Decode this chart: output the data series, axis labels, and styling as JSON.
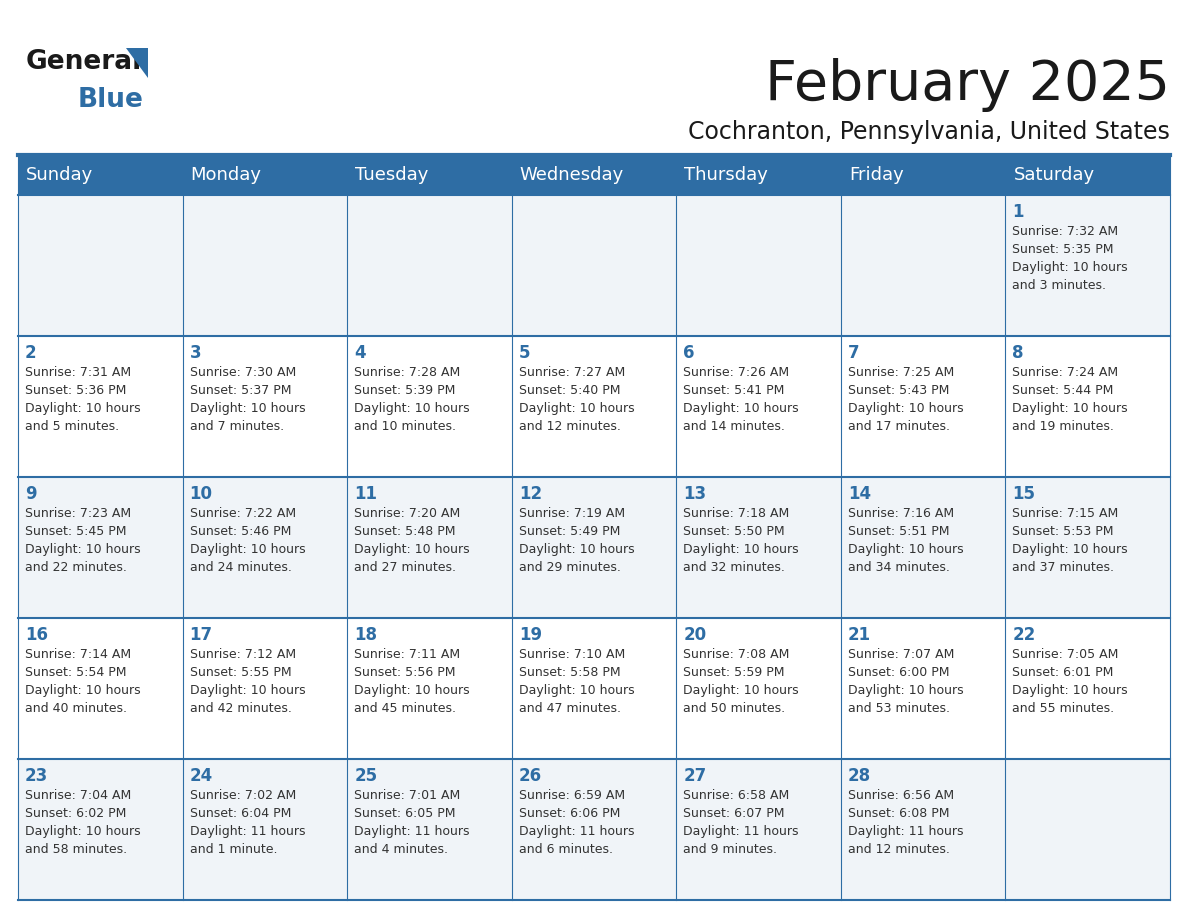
{
  "title": "February 2025",
  "subtitle": "Cochranton, Pennsylvania, United States",
  "header_bg": "#2e6da4",
  "header_text_color": "#ffffff",
  "cell_bg_odd": "#f0f4f8",
  "cell_bg_even": "#ffffff",
  "day_headers": [
    "Sunday",
    "Monday",
    "Tuesday",
    "Wednesday",
    "Thursday",
    "Friday",
    "Saturday"
  ],
  "title_color": "#1a1a1a",
  "subtitle_color": "#1a1a1a",
  "day_num_color": "#2e6da4",
  "info_color": "#333333",
  "line_color": "#2e6da4",
  "logo_general_color": "#1a1a1a",
  "logo_blue_color": "#2e6da4",
  "logo_triangle_color": "#2e6da4",
  "calendar": [
    [
      {
        "day": "",
        "info": ""
      },
      {
        "day": "",
        "info": ""
      },
      {
        "day": "",
        "info": ""
      },
      {
        "day": "",
        "info": ""
      },
      {
        "day": "",
        "info": ""
      },
      {
        "day": "",
        "info": ""
      },
      {
        "day": "1",
        "info": "Sunrise: 7:32 AM\nSunset: 5:35 PM\nDaylight: 10 hours\nand 3 minutes."
      }
    ],
    [
      {
        "day": "2",
        "info": "Sunrise: 7:31 AM\nSunset: 5:36 PM\nDaylight: 10 hours\nand 5 minutes."
      },
      {
        "day": "3",
        "info": "Sunrise: 7:30 AM\nSunset: 5:37 PM\nDaylight: 10 hours\nand 7 minutes."
      },
      {
        "day": "4",
        "info": "Sunrise: 7:28 AM\nSunset: 5:39 PM\nDaylight: 10 hours\nand 10 minutes."
      },
      {
        "day": "5",
        "info": "Sunrise: 7:27 AM\nSunset: 5:40 PM\nDaylight: 10 hours\nand 12 minutes."
      },
      {
        "day": "6",
        "info": "Sunrise: 7:26 AM\nSunset: 5:41 PM\nDaylight: 10 hours\nand 14 minutes."
      },
      {
        "day": "7",
        "info": "Sunrise: 7:25 AM\nSunset: 5:43 PM\nDaylight: 10 hours\nand 17 minutes."
      },
      {
        "day": "8",
        "info": "Sunrise: 7:24 AM\nSunset: 5:44 PM\nDaylight: 10 hours\nand 19 minutes."
      }
    ],
    [
      {
        "day": "9",
        "info": "Sunrise: 7:23 AM\nSunset: 5:45 PM\nDaylight: 10 hours\nand 22 minutes."
      },
      {
        "day": "10",
        "info": "Sunrise: 7:22 AM\nSunset: 5:46 PM\nDaylight: 10 hours\nand 24 minutes."
      },
      {
        "day": "11",
        "info": "Sunrise: 7:20 AM\nSunset: 5:48 PM\nDaylight: 10 hours\nand 27 minutes."
      },
      {
        "day": "12",
        "info": "Sunrise: 7:19 AM\nSunset: 5:49 PM\nDaylight: 10 hours\nand 29 minutes."
      },
      {
        "day": "13",
        "info": "Sunrise: 7:18 AM\nSunset: 5:50 PM\nDaylight: 10 hours\nand 32 minutes."
      },
      {
        "day": "14",
        "info": "Sunrise: 7:16 AM\nSunset: 5:51 PM\nDaylight: 10 hours\nand 34 minutes."
      },
      {
        "day": "15",
        "info": "Sunrise: 7:15 AM\nSunset: 5:53 PM\nDaylight: 10 hours\nand 37 minutes."
      }
    ],
    [
      {
        "day": "16",
        "info": "Sunrise: 7:14 AM\nSunset: 5:54 PM\nDaylight: 10 hours\nand 40 minutes."
      },
      {
        "day": "17",
        "info": "Sunrise: 7:12 AM\nSunset: 5:55 PM\nDaylight: 10 hours\nand 42 minutes."
      },
      {
        "day": "18",
        "info": "Sunrise: 7:11 AM\nSunset: 5:56 PM\nDaylight: 10 hours\nand 45 minutes."
      },
      {
        "day": "19",
        "info": "Sunrise: 7:10 AM\nSunset: 5:58 PM\nDaylight: 10 hours\nand 47 minutes."
      },
      {
        "day": "20",
        "info": "Sunrise: 7:08 AM\nSunset: 5:59 PM\nDaylight: 10 hours\nand 50 minutes."
      },
      {
        "day": "21",
        "info": "Sunrise: 7:07 AM\nSunset: 6:00 PM\nDaylight: 10 hours\nand 53 minutes."
      },
      {
        "day": "22",
        "info": "Sunrise: 7:05 AM\nSunset: 6:01 PM\nDaylight: 10 hours\nand 55 minutes."
      }
    ],
    [
      {
        "day": "23",
        "info": "Sunrise: 7:04 AM\nSunset: 6:02 PM\nDaylight: 10 hours\nand 58 minutes."
      },
      {
        "day": "24",
        "info": "Sunrise: 7:02 AM\nSunset: 6:04 PM\nDaylight: 11 hours\nand 1 minute."
      },
      {
        "day": "25",
        "info": "Sunrise: 7:01 AM\nSunset: 6:05 PM\nDaylight: 11 hours\nand 4 minutes."
      },
      {
        "day": "26",
        "info": "Sunrise: 6:59 AM\nSunset: 6:06 PM\nDaylight: 11 hours\nand 6 minutes."
      },
      {
        "day": "27",
        "info": "Sunrise: 6:58 AM\nSunset: 6:07 PM\nDaylight: 11 hours\nand 9 minutes."
      },
      {
        "day": "28",
        "info": "Sunrise: 6:56 AM\nSunset: 6:08 PM\nDaylight: 11 hours\nand 12 minutes."
      },
      {
        "day": "",
        "info": ""
      }
    ]
  ]
}
